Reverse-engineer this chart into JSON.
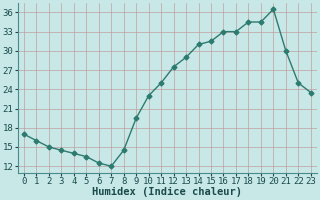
{
  "x": [
    0,
    1,
    2,
    3,
    4,
    5,
    6,
    7,
    8,
    9,
    10,
    11,
    12,
    13,
    14,
    15,
    16,
    17,
    18,
    19,
    20,
    21,
    22,
    23
  ],
  "y": [
    17,
    16,
    15,
    14.5,
    14,
    13.5,
    12.5,
    12,
    14.5,
    19.5,
    23,
    25,
    27.5,
    29,
    31,
    31.5,
    33,
    33,
    34.5,
    34.5,
    36.5,
    30,
    25,
    23.5
  ],
  "line_color": "#2d7a6e",
  "marker": "D",
  "markersize": 2.5,
  "bg_color": "#c8e8e8",
  "grid_color": "#a8c8c8",
  "xlabel": "Humidex (Indice chaleur)",
  "xlim": [
    -0.5,
    23.5
  ],
  "ylim": [
    11,
    37.5
  ],
  "yticks": [
    12,
    15,
    18,
    21,
    24,
    27,
    30,
    33,
    36
  ],
  "xticks": [
    0,
    1,
    2,
    3,
    4,
    5,
    6,
    7,
    8,
    9,
    10,
    11,
    12,
    13,
    14,
    15,
    16,
    17,
    18,
    19,
    20,
    21,
    22,
    23
  ],
  "tick_fontsize": 6.5,
  "xlabel_fontsize": 7.5,
  "linewidth": 1.0
}
